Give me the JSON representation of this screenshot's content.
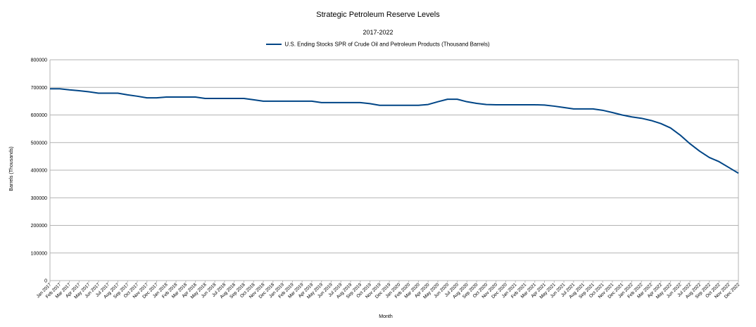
{
  "chart_data": {
    "type": "line",
    "title": "Strategic Petroleum Reserve Levels",
    "subtitle": "2017-2022",
    "xlabel": "Month",
    "ylabel": "Barrels (Thousands)",
    "ylim": [
      0,
      800000
    ],
    "yticks": [
      0,
      100000,
      200000,
      300000,
      400000,
      500000,
      600000,
      700000,
      800000
    ],
    "grid": true,
    "legend_position": "top-center",
    "line_color": "#004586",
    "categories": [
      "Jan 2017",
      "Feb 2017",
      "Mar 2017",
      "Apr 2017",
      "May 2017",
      "Jun 2017",
      "Jul 2017",
      "Aug 2017",
      "Sep 2017",
      "Oct 2017",
      "Nov 2017",
      "Dec 2017",
      "Jan 2018",
      "Feb 2018",
      "Mar 2018",
      "Apr 2018",
      "May 2018",
      "Jun 2018",
      "Jul 2018",
      "Aug 2018",
      "Sep 2018",
      "Oct 2018",
      "Nov 2018",
      "Dec 2018",
      "Jan 2019",
      "Feb 2019",
      "Mar 2019",
      "Apr 2019",
      "May 2019",
      "Jun 2019",
      "Jul 2019",
      "Aug 2019",
      "Sep 2019",
      "Oct 2019",
      "Nov 2019",
      "Dec 2019",
      "Jan 2020",
      "Feb 2020",
      "Mar 2020",
      "Apr 2020",
      "May 2020",
      "Jun 2020",
      "Jul 2020",
      "Aug 2020",
      "Sep 2020",
      "Oct 2020",
      "Nov 2020",
      "Dec 2020",
      "Jan 2021",
      "Feb 2021",
      "Mar 2021",
      "Apr 2021",
      "May 2021",
      "Jun 2021",
      "Jul 2021",
      "Aug 2021",
      "Sep 2021",
      "Oct 2021",
      "Nov 2021",
      "Dec 2021",
      "Jan 2022",
      "Feb 2022",
      "Mar 2022",
      "Apr 2022",
      "May 2022",
      "Jun 2022",
      "Jul 2022",
      "Aug 2022",
      "Sep 2022",
      "Oct 2022",
      "Nov 2022",
      "Dec 2022"
    ],
    "series": [
      {
        "name": "U.S. Ending Stocks SPR of Crude Oil and Petroleum Products (Thousand Barrels)",
        "values": [
          695000,
          695000,
          691000,
          688000,
          684000,
          679000,
          679000,
          679000,
          673000,
          668000,
          662000,
          662000,
          665000,
          665000,
          665000,
          665000,
          660000,
          660000,
          660000,
          660000,
          660000,
          655000,
          650000,
          650000,
          650000,
          650000,
          650000,
          650000,
          645000,
          645000,
          645000,
          645000,
          645000,
          641000,
          635000,
          635000,
          635000,
          635000,
          635000,
          638000,
          648000,
          657000,
          657000,
          648000,
          642000,
          638000,
          637000,
          637000,
          637000,
          637000,
          637000,
          636000,
          632000,
          627000,
          622000,
          622000,
          622000,
          617000,
          609000,
          600000,
          593000,
          588000,
          580000,
          569000,
          553000,
          527000,
          496000,
          469000,
          446000,
          431000,
          410000,
          389000
        ]
      }
    ]
  }
}
